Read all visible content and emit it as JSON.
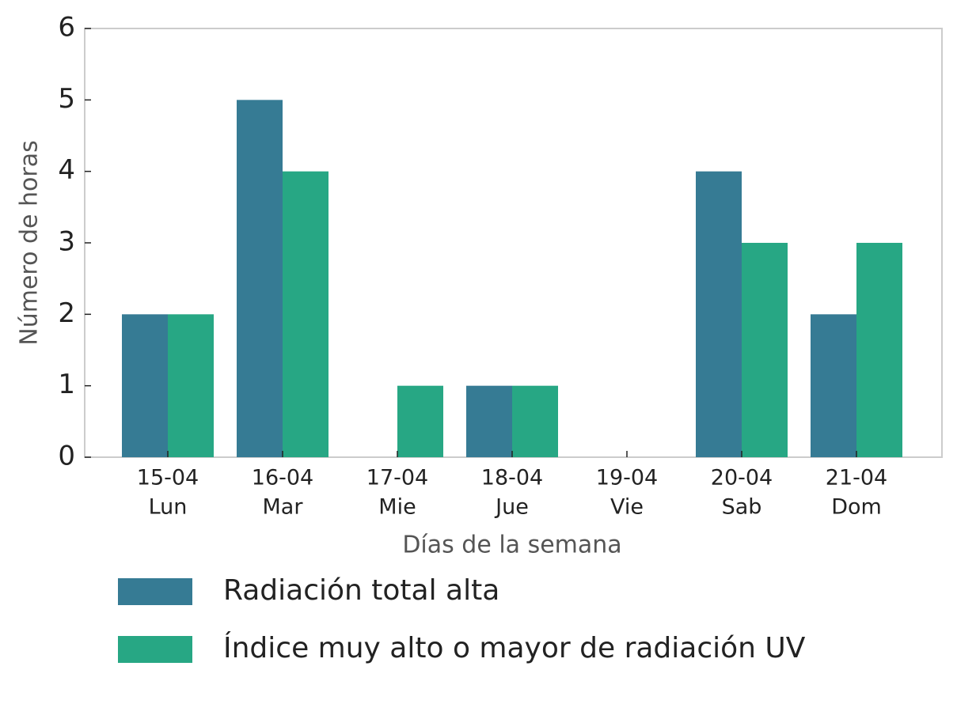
{
  "chart_data": {
    "type": "bar",
    "x_label": "Días de la semana",
    "y_label": "Número de horas",
    "categories": [
      [
        "15-04",
        "Lun"
      ],
      [
        "16-04",
        "Mar"
      ],
      [
        "17-04",
        "Mie"
      ],
      [
        "18-04",
        "Jue"
      ],
      [
        "19-04",
        "Vie"
      ],
      [
        "20-04",
        "Sab"
      ],
      [
        "21-04",
        "Dom"
      ]
    ],
    "series": [
      {
        "name": "Radiación total alta",
        "color": "#367b94",
        "values": [
          2,
          5,
          0,
          1,
          0,
          4,
          2
        ]
      },
      {
        "name": "Índice muy alto o mayor de radiación UV",
        "color": "#27a784",
        "values": [
          2,
          4,
          1,
          1,
          0,
          3,
          3
        ]
      }
    ],
    "ylim": [
      0,
      6
    ],
    "yticks": [
      0,
      1,
      2,
      3,
      4,
      5,
      6
    ],
    "grid": false
  }
}
